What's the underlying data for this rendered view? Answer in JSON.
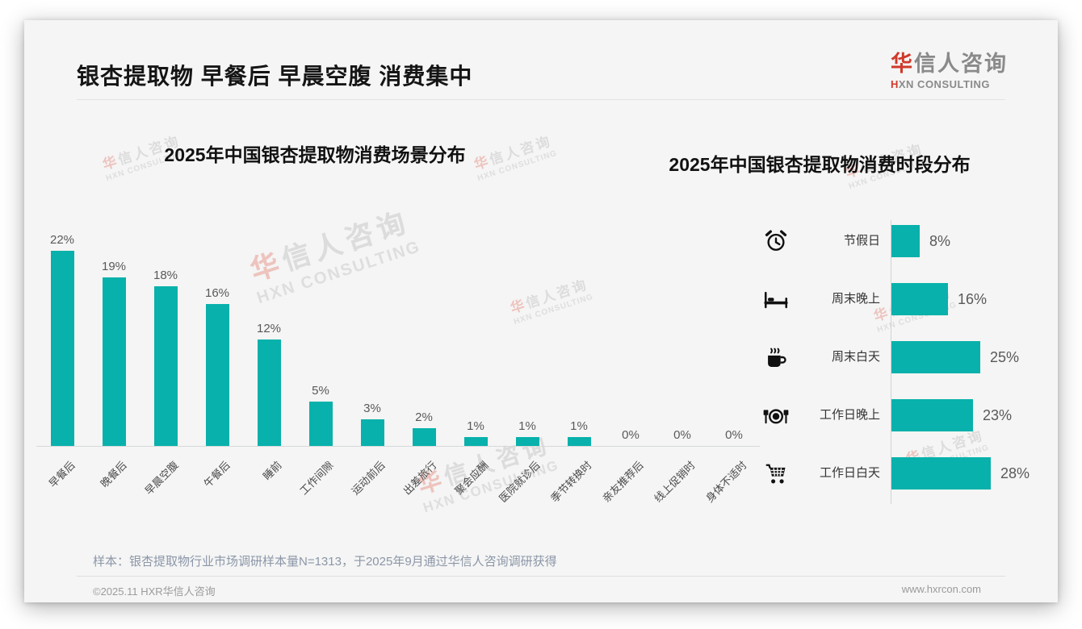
{
  "page": {
    "background": "#ffffff",
    "card_background": "#f4f5f4"
  },
  "header": {
    "title": "银杏提取物 早餐后 早晨空腹 消费集中",
    "logo": {
      "zh_accent": "华",
      "zh_rest": "信人咨询",
      "en_accent": "H",
      "en_rest": "XN CONSULTING"
    }
  },
  "colors": {
    "bar_teal": "#08b1ab",
    "logo_red": "#d0392b",
    "label_gray": "#595959"
  },
  "chart_data": [
    {
      "type": "bar",
      "orientation": "vertical",
      "title": "2025年中国银杏提取物消费场景分布",
      "categories": [
        "早餐后",
        "晚餐后",
        "早晨空腹",
        "午餐后",
        "睡前",
        "工作间隙",
        "运动前后",
        "出差旅行",
        "聚会应酬",
        "医院就诊后",
        "季节转换时",
        "亲友推荐后",
        "线上促销时",
        "身体不适时"
      ],
      "values": [
        22,
        19,
        18,
        16,
        12,
        5,
        3,
        2,
        1,
        1,
        1,
        0,
        0,
        0
      ],
      "unit": "%",
      "value_labels": true,
      "grid": false,
      "ylim": [
        0,
        24
      ],
      "bar_color": "#08b1ab"
    },
    {
      "type": "bar",
      "orientation": "horizontal",
      "title": "2025年中国银杏提取物消费时段分布",
      "categories": [
        "节假日",
        "周末晚上",
        "周末白天",
        "工作日晚上",
        "工作日白天"
      ],
      "values": [
        8,
        16,
        25,
        23,
        28
      ],
      "icons": [
        "alarm-clock-icon",
        "bed-icon",
        "coffee-icon",
        "dining-icon",
        "shopping-cart-icon"
      ],
      "unit": "%",
      "value_labels": true,
      "grid": false,
      "xlim": [
        0,
        30
      ],
      "bar_color": "#08b1ab"
    }
  ],
  "watermark": {
    "zh_accent": "华",
    "zh_rest": "信人咨询",
    "en": "HXN CONSULTING"
  },
  "footnote": "样本：银杏提取物行业市场调研样本量N=1313，于2025年9月通过华信人咨询调研获得",
  "footer": {
    "copyright": "©2025.11 HXR华信人咨询",
    "website": "www.hxrcon.com"
  }
}
